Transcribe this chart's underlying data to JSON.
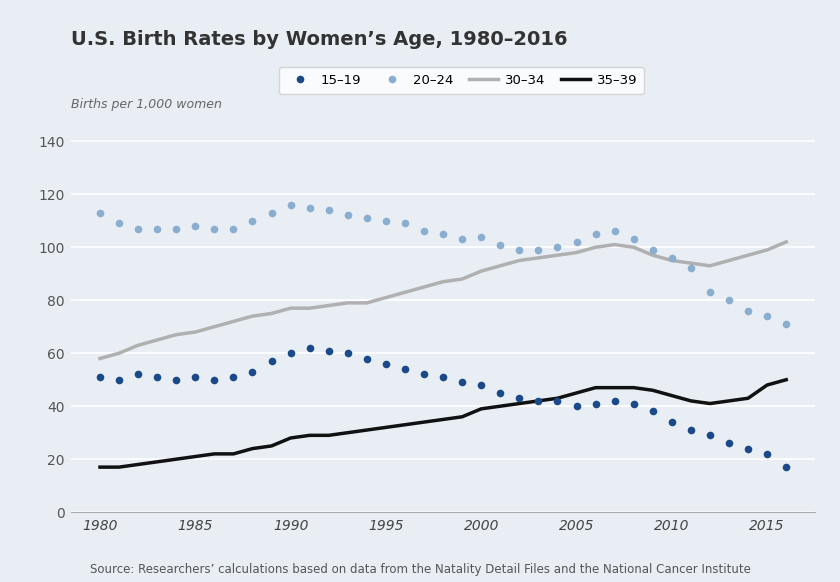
{
  "title": "U.S. Birth Rates by Women’s Age, 1980–2016",
  "ylabel": "Births per 1,000 women",
  "background_color": "#e8eef4",
  "plot_bg_color": "#e8eef4",
  "ylim": [
    0,
    145
  ],
  "yticks": [
    0,
    20,
    40,
    60,
    80,
    100,
    120,
    140
  ],
  "xlim": [
    1978.5,
    2017.5
  ],
  "xticks": [
    1980,
    1985,
    1990,
    1995,
    2000,
    2005,
    2010,
    2015
  ],
  "source_text": "Source: Researchers’ calculations based on data from the Natality Detail Files and the National Cancer Institute",
  "age_15_19": {
    "years": [
      1980,
      1981,
      1982,
      1983,
      1984,
      1985,
      1986,
      1987,
      1988,
      1989,
      1990,
      1991,
      1992,
      1993,
      1994,
      1995,
      1996,
      1997,
      1998,
      1999,
      2000,
      2001,
      2002,
      2003,
      2004,
      2005,
      2006,
      2007,
      2008,
      2009,
      2010,
      2011,
      2012,
      2013,
      2014,
      2015,
      2016
    ],
    "values": [
      51,
      50,
      52,
      51,
      50,
      51,
      50,
      51,
      53,
      57,
      60,
      62,
      61,
      60,
      58,
      56,
      54,
      52,
      51,
      49,
      48,
      45,
      43,
      42,
      42,
      40,
      41,
      42,
      41,
      38,
      34,
      31,
      29,
      26,
      24,
      22,
      17
    ],
    "color": "#1a4a8a",
    "markersize": 5.5,
    "label": "15–19"
  },
  "age_20_24": {
    "years": [
      1980,
      1981,
      1982,
      1983,
      1984,
      1985,
      1986,
      1987,
      1988,
      1989,
      1990,
      1991,
      1992,
      1993,
      1994,
      1995,
      1996,
      1997,
      1998,
      1999,
      2000,
      2001,
      2002,
      2003,
      2004,
      2005,
      2006,
      2007,
      2008,
      2009,
      2010,
      2011,
      2012,
      2013,
      2014,
      2015,
      2016
    ],
    "values": [
      113,
      109,
      107,
      107,
      107,
      108,
      107,
      107,
      110,
      113,
      116,
      115,
      114,
      112,
      111,
      110,
      109,
      106,
      105,
      103,
      104,
      101,
      99,
      99,
      100,
      102,
      105,
      106,
      103,
      99,
      96,
      92,
      83,
      80,
      76,
      74,
      71
    ],
    "color": "#8aaed0",
    "markersize": 5.5,
    "label": "20–24"
  },
  "age_30_34": {
    "years": [
      1980,
      1981,
      1982,
      1983,
      1984,
      1985,
      1986,
      1987,
      1988,
      1989,
      1990,
      1991,
      1992,
      1993,
      1994,
      1995,
      1996,
      1997,
      1998,
      1999,
      2000,
      2001,
      2002,
      2003,
      2004,
      2005,
      2006,
      2007,
      2008,
      2009,
      2010,
      2011,
      2012,
      2013,
      2014,
      2015,
      2016
    ],
    "values": [
      58,
      60,
      63,
      65,
      67,
      68,
      70,
      72,
      74,
      75,
      77,
      77,
      78,
      79,
      79,
      81,
      83,
      85,
      87,
      88,
      91,
      93,
      95,
      96,
      97,
      98,
      100,
      101,
      100,
      97,
      95,
      94,
      93,
      95,
      97,
      99,
      102
    ],
    "color": "#b0b0b0",
    "linewidth": 2.5,
    "label": "30–34"
  },
  "age_35_39": {
    "years": [
      1980,
      1981,
      1982,
      1983,
      1984,
      1985,
      1986,
      1987,
      1988,
      1989,
      1990,
      1991,
      1992,
      1993,
      1994,
      1995,
      1996,
      1997,
      1998,
      1999,
      2000,
      2001,
      2002,
      2003,
      2004,
      2005,
      2006,
      2007,
      2008,
      2009,
      2010,
      2011,
      2012,
      2013,
      2014,
      2015,
      2016
    ],
    "values": [
      17,
      17,
      18,
      19,
      20,
      21,
      22,
      22,
      24,
      25,
      28,
      29,
      29,
      30,
      31,
      32,
      33,
      34,
      35,
      36,
      39,
      40,
      41,
      42,
      43,
      45,
      47,
      47,
      47,
      46,
      44,
      42,
      41,
      42,
      43,
      48,
      50
    ],
    "color": "#111111",
    "linewidth": 2.5,
    "label": "35–39"
  }
}
